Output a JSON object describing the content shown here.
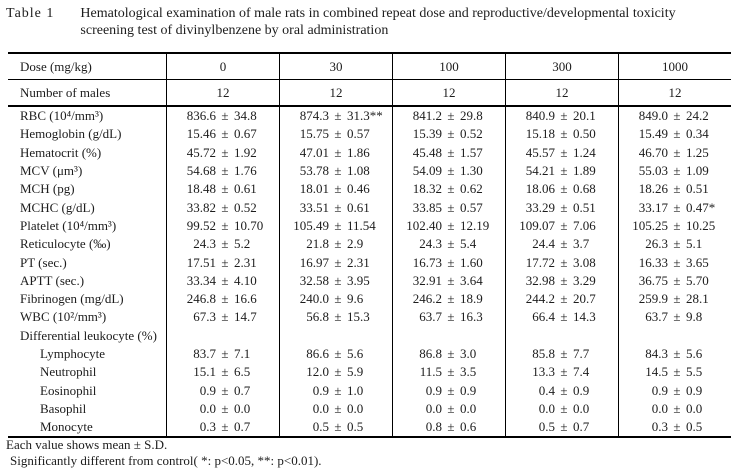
{
  "caption": {
    "label": "Table 1",
    "line1": "Hematological examination of male rats in combined repeat dose and reproductive/developmental toxicity",
    "line2": "screening test of divinylbenzene by oral administration"
  },
  "table": {
    "pm_sign": "±",
    "header_rows": [
      {
        "label": "Dose (mg/kg)",
        "values": [
          "0",
          "30",
          "100",
          "300",
          "1000"
        ]
      },
      {
        "label": "Number of males",
        "values": [
          "12",
          "12",
          "12",
          "12",
          "12"
        ]
      }
    ],
    "rows": [
      {
        "label": "RBC (10⁴/mm³)",
        "indent": false,
        "cells": [
          [
            "836.6",
            "34.8"
          ],
          [
            "874.3",
            "31.3**"
          ],
          [
            "841.2",
            "29.8"
          ],
          [
            "840.9",
            "20.1"
          ],
          [
            "849.0",
            "24.2"
          ]
        ]
      },
      {
        "label": "Hemoglobin (g/dL)",
        "indent": false,
        "cells": [
          [
            "15.46",
            "0.67"
          ],
          [
            "15.75",
            "0.57"
          ],
          [
            "15.39",
            "0.52"
          ],
          [
            "15.18",
            "0.50"
          ],
          [
            "15.49",
            "0.34"
          ]
        ]
      },
      {
        "label": "Hematocrit (%)",
        "indent": false,
        "cells": [
          [
            "45.72",
            "1.92"
          ],
          [
            "47.01",
            "1.86"
          ],
          [
            "45.48",
            "1.57"
          ],
          [
            "45.57",
            "1.24"
          ],
          [
            "46.70",
            "1.25"
          ]
        ]
      },
      {
        "label": "MCV (μm³)",
        "indent": false,
        "cells": [
          [
            "54.68",
            "1.76"
          ],
          [
            "53.78",
            "1.08"
          ],
          [
            "54.09",
            "1.30"
          ],
          [
            "54.21",
            "1.89"
          ],
          [
            "55.03",
            "1.09"
          ]
        ]
      },
      {
        "label": "MCH (pg)",
        "indent": false,
        "cells": [
          [
            "18.48",
            "0.61"
          ],
          [
            "18.01",
            "0.46"
          ],
          [
            "18.32",
            "0.62"
          ],
          [
            "18.06",
            "0.68"
          ],
          [
            "18.26",
            "0.51"
          ]
        ]
      },
      {
        "label": "MCHC (g/dL)",
        "indent": false,
        "cells": [
          [
            "33.82",
            "0.52"
          ],
          [
            "33.51",
            "0.61"
          ],
          [
            "33.85",
            "0.57"
          ],
          [
            "33.29",
            "0.51"
          ],
          [
            "33.17",
            "0.47*"
          ]
        ]
      },
      {
        "label": "Platelet (10⁴/mm³)",
        "indent": false,
        "cells": [
          [
            "99.52",
            "10.70"
          ],
          [
            "105.49",
            "11.54"
          ],
          [
            "102.40",
            "12.19"
          ],
          [
            "109.07",
            "7.06"
          ],
          [
            "105.25",
            "10.25"
          ]
        ]
      },
      {
        "label": "Reticulocyte (‰)",
        "indent": false,
        "cells": [
          [
            "24.3",
            "5.2"
          ],
          [
            "21.8",
            "2.9"
          ],
          [
            "24.3",
            "5.4"
          ],
          [
            "24.4",
            "3.7"
          ],
          [
            "26.3",
            "5.1"
          ]
        ]
      },
      {
        "label": "PT (sec.)",
        "indent": false,
        "cells": [
          [
            "17.51",
            "2.31"
          ],
          [
            "16.97",
            "2.31"
          ],
          [
            "16.73",
            "1.60"
          ],
          [
            "17.72",
            "3.08"
          ],
          [
            "16.33",
            "3.65"
          ]
        ]
      },
      {
        "label": "APTT (sec.)",
        "indent": false,
        "cells": [
          [
            "33.34",
            "4.10"
          ],
          [
            "32.58",
            "3.95"
          ],
          [
            "32.91",
            "3.64"
          ],
          [
            "32.98",
            "3.29"
          ],
          [
            "36.75",
            "5.70"
          ]
        ]
      },
      {
        "label": "Fibrinogen (mg/dL)",
        "indent": false,
        "cells": [
          [
            "246.8",
            "16.6"
          ],
          [
            "240.0",
            "9.6"
          ],
          [
            "246.2",
            "18.9"
          ],
          [
            "244.2",
            "20.7"
          ],
          [
            "259.9",
            "28.1"
          ]
        ]
      },
      {
        "label": "WBC (10²/mm³)",
        "indent": false,
        "cells": [
          [
            "67.3",
            "14.7"
          ],
          [
            "56.8",
            "15.3"
          ],
          [
            "63.7",
            "16.3"
          ],
          [
            "66.4",
            "14.3"
          ],
          [
            "63.7",
            "9.8"
          ]
        ]
      },
      {
        "label": "Differential leukocyte (%)",
        "indent": false,
        "cells": []
      },
      {
        "label": "Lymphocyte",
        "indent": true,
        "cells": [
          [
            "83.7",
            "7.1"
          ],
          [
            "86.6",
            "5.6"
          ],
          [
            "86.8",
            "3.0"
          ],
          [
            "85.8",
            "7.7"
          ],
          [
            "84.3",
            "5.6"
          ]
        ]
      },
      {
        "label": "Neutrophil",
        "indent": true,
        "cells": [
          [
            "15.1",
            "6.5"
          ],
          [
            "12.0",
            "5.9"
          ],
          [
            "11.5",
            "3.5"
          ],
          [
            "13.3",
            "7.4"
          ],
          [
            "14.5",
            "5.5"
          ]
        ]
      },
      {
        "label": "Eosinophil",
        "indent": true,
        "cells": [
          [
            "0.9",
            "0.7"
          ],
          [
            "0.9",
            "1.0"
          ],
          [
            "0.9",
            "0.9"
          ],
          [
            "0.4",
            "0.9"
          ],
          [
            "0.9",
            "0.9"
          ]
        ]
      },
      {
        "label": "Basophil",
        "indent": true,
        "cells": [
          [
            "0.0",
            "0.0"
          ],
          [
            "0.0",
            "0.0"
          ],
          [
            "0.0",
            "0.0"
          ],
          [
            "0.0",
            "0.0"
          ],
          [
            "0.0",
            "0.0"
          ]
        ]
      },
      {
        "label": "Monocyte",
        "indent": true,
        "cells": [
          [
            "0.3",
            "0.7"
          ],
          [
            "0.5",
            "0.5"
          ],
          [
            "0.8",
            "0.6"
          ],
          [
            "0.5",
            "0.7"
          ],
          [
            "0.3",
            "0.5"
          ]
        ]
      }
    ]
  },
  "footnotes": {
    "line1": "Each value shows mean ± S.D.",
    "line2": "Significantly different from control( *: p<0.05, **: p<0.01)."
  }
}
